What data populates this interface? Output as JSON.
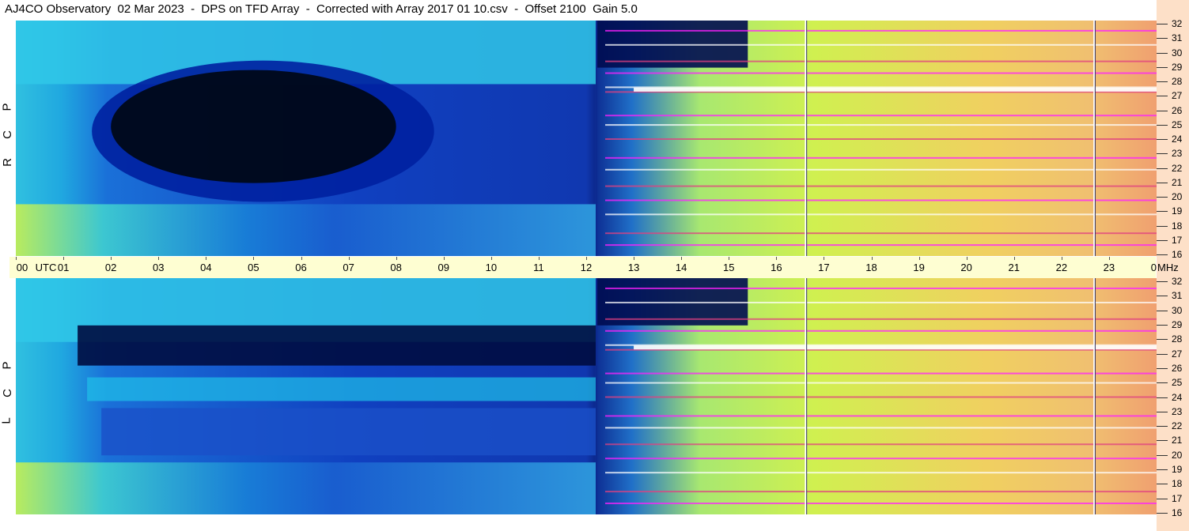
{
  "title": "AJ4CO Observatory  02 Mar 2023  -  DPS on TFD Array  -  Corrected with Array 2017 01 10.csv  -  Offset 2100  Gain 5.0",
  "chart_data": {
    "type": "heatmap",
    "title": "AJ4CO Observatory  02 Mar 2023  -  DPS on TFD Array  -  Corrected with Array 2017 01 10.csv  -  Offset 2100  Gain 5.0",
    "x_unit_label": "UTC",
    "y_unit_label": "MHz",
    "x_ticks": [
      "00",
      "01",
      "02",
      "03",
      "04",
      "05",
      "06",
      "07",
      "08",
      "09",
      "10",
      "11",
      "12",
      "13",
      "14",
      "15",
      "16",
      "17",
      "18",
      "19",
      "20",
      "21",
      "22",
      "23",
      "00"
    ],
    "x_range_hours": [
      0,
      24
    ],
    "y_range_mhz": [
      16,
      32
    ],
    "y_ticks": [
      "32",
      "31",
      "30",
      "29",
      "28",
      "27",
      "26",
      "25",
      "24",
      "23",
      "22",
      "21",
      "20",
      "19",
      "18",
      "17",
      "16"
    ],
    "panels": [
      {
        "polarization": [
          "R",
          "C",
          "P"
        ]
      },
      {
        "polarization": [
          "L",
          "C",
          "P"
        ]
      }
    ],
    "colors": {
      "low": "#000820",
      "mid_low": "#1040c0",
      "mid": "#20c8e8",
      "mid_high": "#c8f050",
      "high": "#f0a060",
      "interference": "#ff20ff"
    }
  }
}
